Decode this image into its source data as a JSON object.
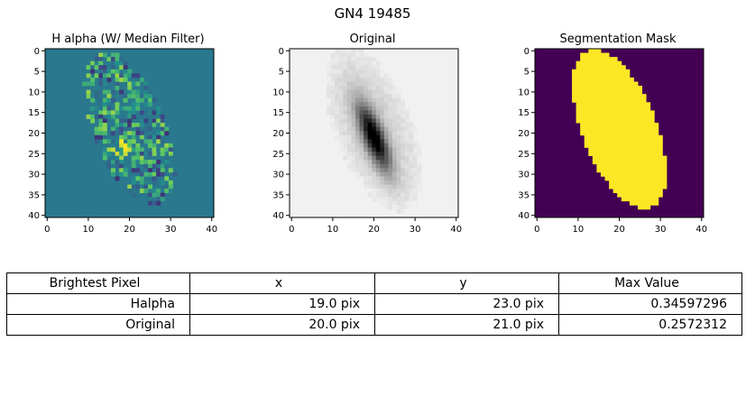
{
  "suptitle": "GN4 19485",
  "chart_data": [
    {
      "type": "heatmap",
      "title": "H alpha (W/ Median Filter)",
      "colormap": "viridis",
      "background_color": "#2a788e",
      "shape": [
        41,
        41
      ],
      "xticks": [
        "0",
        "10",
        "20",
        "30",
        "40"
      ],
      "yticks": [
        "0",
        "5",
        "10",
        "15",
        "20",
        "25",
        "30",
        "35",
        "40"
      ],
      "brightest_pixel": {
        "x": 19,
        "y": 23,
        "value": 0.34597296
      }
    },
    {
      "type": "heatmap",
      "title": "Original",
      "colormap": "gray_r",
      "shape": [
        41,
        41
      ],
      "xticks": [
        "0",
        "10",
        "20",
        "30",
        "40"
      ],
      "yticks": [
        "0",
        "5",
        "10",
        "15",
        "20",
        "25",
        "30",
        "35",
        "40"
      ],
      "brightest_pixel": {
        "x": 20,
        "y": 21,
        "value": 0.2572312
      }
    },
    {
      "type": "heatmap",
      "title": "Segmentation Mask",
      "colormap": "viridis",
      "colors": {
        "background": "#440154",
        "mask": "#fde725"
      },
      "shape": [
        41,
        41
      ],
      "xticks": [
        "0",
        "10",
        "20",
        "30",
        "40"
      ],
      "yticks": [
        "0",
        "5",
        "10",
        "15",
        "20",
        "25",
        "30",
        "35",
        "40"
      ]
    }
  ],
  "table": {
    "headers": [
      "Brightest Pixel",
      "x",
      "y",
      "Max Value"
    ],
    "rows": [
      [
        "Halpha",
        "19.0 pix",
        "23.0 pix",
        "0.34597296"
      ],
      [
        "Original",
        "20.0 pix",
        "21.0 pix",
        "0.2572312"
      ]
    ]
  }
}
